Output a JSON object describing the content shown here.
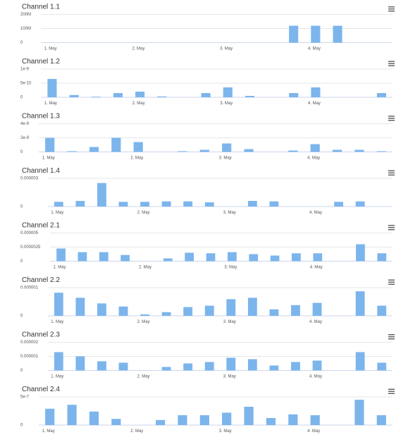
{
  "chart_data": [
    {
      "type": "bar",
      "title": "Channel 1.1",
      "color": "#7cb5ec",
      "categories": [
        "1. May",
        null,
        null,
        null,
        "2. May",
        null,
        null,
        null,
        "3. May",
        null,
        null,
        null,
        "4. May",
        null,
        null,
        null
      ],
      "values": [
        null,
        null,
        null,
        null,
        null,
        null,
        null,
        null,
        null,
        null,
        null,
        120000000,
        120000000,
        120000000,
        null,
        null
      ],
      "ylim": [
        0,
        200000000
      ],
      "yticks": [
        0,
        {
          "value": 100000000,
          "label": "100M"
        },
        {
          "value": 200000000,
          "label": "200M"
        }
      ]
    },
    {
      "type": "bar",
      "title": "Channel 1.2",
      "color": "#7cb5ec",
      "categories": [
        "1. May",
        null,
        null,
        null,
        "2. May",
        null,
        null,
        null,
        "3. May",
        null,
        null,
        null,
        "4. May",
        null,
        null,
        null
      ],
      "values": [
        6.5e-10,
        8e-11,
        2e-11,
        1.5e-10,
        2e-10,
        3e-11,
        null,
        1.5e-10,
        3.5e-10,
        5e-11,
        null,
        1.5e-10,
        3.5e-10,
        null,
        null,
        1.5e-10
      ],
      "ylim": [
        0,
        1e-09
      ],
      "yticks": [
        0,
        5e-10,
        1e-09
      ]
    },
    {
      "type": "bar",
      "title": "Channel 1.3",
      "color": "#7cb5ec",
      "categories": [
        "1. May",
        null,
        null,
        null,
        "2. May",
        null,
        null,
        null,
        "3. May",
        null,
        null,
        null,
        "4. May",
        null,
        null,
        null
      ],
      "values": [
        2e-09,
        1e-10,
        7e-10,
        2e-09,
        1.4e-09,
        null,
        1e-10,
        3e-10,
        1.2e-09,
        4e-10,
        null,
        2e-10,
        1.1e-09,
        3e-10,
        3e-10,
        1e-10
      ],
      "ylim": [
        0,
        4e-09
      ],
      "yticks": [
        0,
        2e-09,
        4e-09
      ]
    },
    {
      "type": "bar",
      "title": "Channel 1.4",
      "color": "#7cb5ec",
      "categories": [
        "1. May",
        null,
        null,
        null,
        "2. May",
        null,
        null,
        null,
        "3. May",
        null,
        null,
        null,
        "4. May",
        null,
        null,
        null
      ],
      "values": [
        5e-07,
        6e-07,
        2.5e-06,
        5e-07,
        5e-07,
        5.5e-07,
        5.5e-07,
        4.5e-07,
        null,
        6e-07,
        5.5e-07,
        null,
        null,
        5e-07,
        5.5e-07,
        null
      ],
      "ylim": [
        0,
        3e-06
      ],
      "yticks": [
        0,
        3e-06
      ]
    },
    {
      "type": "bar",
      "title": "Channel 2.1",
      "color": "#7cb5ec",
      "categories": [
        "1. May",
        null,
        null,
        null,
        "2. May",
        null,
        null,
        null,
        "3. May",
        null,
        null,
        null,
        "4. May",
        null,
        null,
        null
      ],
      "values": [
        2.25e-06,
        1.6e-06,
        1.6e-06,
        1.1e-06,
        null,
        5e-07,
        1.5e-06,
        1.4e-06,
        1.6e-06,
        1.25e-06,
        1e-06,
        1.4e-06,
        1.4e-06,
        null,
        3e-06,
        1.4e-06
      ],
      "ylim": [
        0,
        5e-06
      ],
      "yticks": [
        0,
        2.5e-06,
        5e-06
      ]
    },
    {
      "type": "bar",
      "title": "Channel 2.2",
      "color": "#7cb5ec",
      "categories": [
        "1. May",
        null,
        null,
        null,
        "2. May",
        null,
        null,
        null,
        "3. May",
        null,
        null,
        null,
        "4. May",
        null,
        null,
        null
      ],
      "values": [
        8.2e-07,
        6.4e-07,
        4.4e-07,
        3.3e-07,
        5e-08,
        1.3e-07,
        3.1e-07,
        3.6e-07,
        5.9e-07,
        6.4e-07,
        2.3e-07,
        3.8e-07,
        4.6e-07,
        null,
        8.7e-07,
        3.6e-07
      ],
      "ylim": [
        0,
        1e-06
      ],
      "yticks": [
        0,
        1e-06
      ]
    },
    {
      "type": "bar",
      "title": "Channel 2.3",
      "color": "#7cb5ec",
      "categories": [
        "1. May",
        null,
        null,
        null,
        "2. May",
        null,
        null,
        null,
        "3. May",
        null,
        null,
        null,
        "4. May",
        null,
        null,
        null
      ],
      "values": [
        1.3e-06,
        1e-06,
        6.5e-07,
        5.5e-07,
        null,
        2.5e-07,
        5e-07,
        6e-07,
        9e-07,
        8e-07,
        3.5e-07,
        6e-07,
        7e-07,
        null,
        1.3e-06,
        5.5e-07
      ],
      "ylim": [
        0,
        2e-06
      ],
      "yticks": [
        0,
        1e-06,
        2e-06
      ]
    },
    {
      "type": "bar",
      "title": "Channel 2.4",
      "color": "#7cb5ec",
      "categories": [
        "1. May",
        null,
        null,
        null,
        "2. May",
        null,
        null,
        null,
        "3. May",
        null,
        null,
        null,
        "4. May",
        null,
        null,
        null
      ],
      "values": [
        2.9e-07,
        3.6e-07,
        2.4e-07,
        1.1e-07,
        null,
        9e-08,
        1.75e-07,
        1.75e-07,
        2.2e-07,
        3.25e-07,
        1.25e-07,
        1.9e-07,
        1.75e-07,
        null,
        4.5e-07,
        1.75e-07
      ],
      "ylim": [
        0,
        5e-07
      ],
      "yticks": [
        0,
        5e-07
      ]
    }
  ]
}
